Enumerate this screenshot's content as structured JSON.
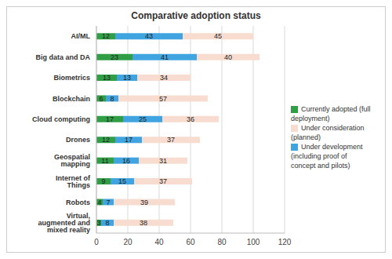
{
  "chart_data": {
    "type": "bar",
    "title": "Comparative adoption status",
    "orientation": "horizontal",
    "stacked": true,
    "data_labels": true,
    "grid": true,
    "legend": "right",
    "categories": [
      "AI/ML",
      "Big data and DA",
      "Biometrics",
      "Blockchain",
      "Cloud computing",
      "Drones",
      "Geospatial mapping",
      "Internet of Things",
      "Robots",
      "Virtual, augmented and mixed reality"
    ],
    "series": [
      {
        "name": "Currently adopted (full deployment)",
        "color": "#2f9e44",
        "values": [
          12,
          23,
          13,
          6,
          17,
          12,
          11,
          9,
          4,
          3
        ]
      },
      {
        "name": "Under development (including proof of concept and pilots)",
        "color": "#3fa4e0",
        "values": [
          43,
          41,
          13,
          8,
          25,
          17,
          16,
          15,
          7,
          8
        ]
      },
      {
        "name": "Under consideration (planned)",
        "color": "#f8dccf",
        "values": [
          45,
          40,
          34,
          57,
          36,
          37,
          31,
          37,
          39,
          38
        ]
      }
    ],
    "xlim": [
      0,
      120
    ],
    "xticks": [
      0,
      20,
      40,
      60,
      80,
      100,
      120
    ]
  }
}
